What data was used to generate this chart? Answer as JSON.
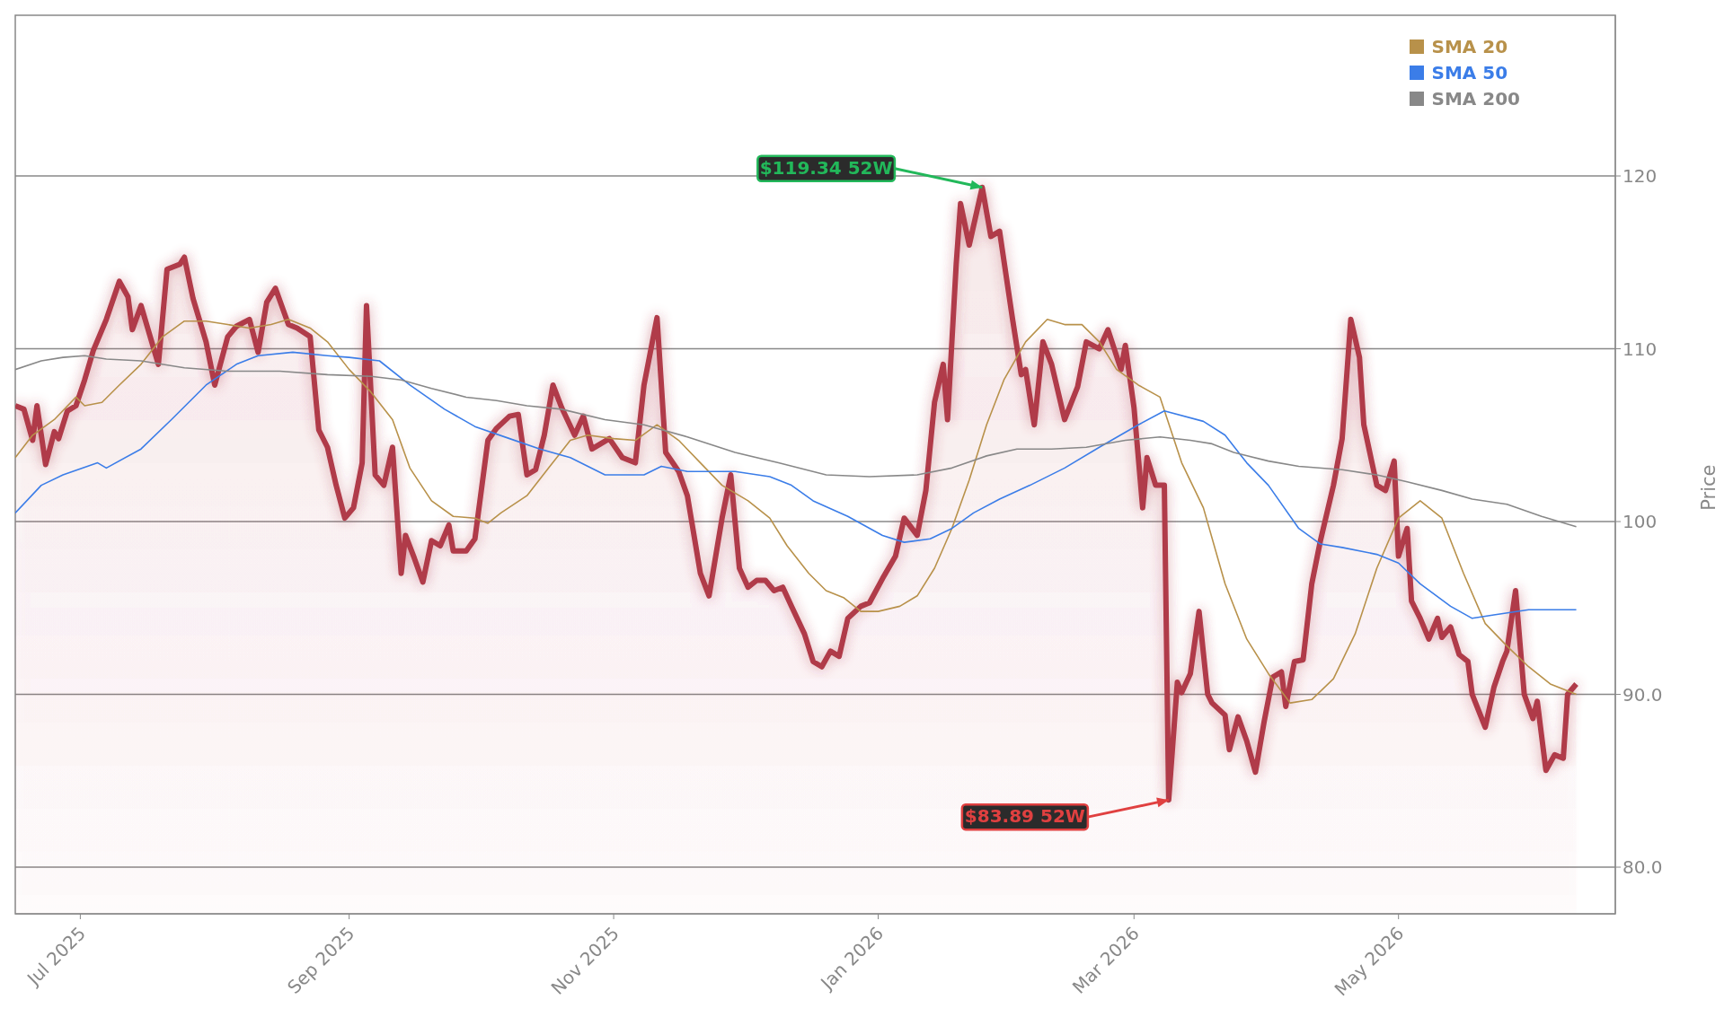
{
  "chart_data": {
    "type": "line",
    "ylabel": "Price",
    "grid": "y",
    "legend": "top right",
    "xlim": [
      "2025-06-16",
      "2026-06-20"
    ],
    "xticks": [
      {
        "value": "2025-07-01",
        "label": "Jul 2025"
      },
      {
        "value": "2025-09-01",
        "label": "Sep 2025"
      },
      {
        "value": "2025-11-01",
        "label": "Nov 2025"
      },
      {
        "value": "2026-01-01",
        "label": "Jan 2026"
      },
      {
        "value": "2026-03-01",
        "label": "Mar 2026"
      },
      {
        "value": "2026-05-01",
        "label": "May 2026"
      }
    ],
    "ylim": [
      77.3,
      129.3
    ],
    "yticks": [
      {
        "value": 80,
        "label": "80.0"
      },
      {
        "value": 90,
        "label": "90.0"
      },
      100,
      110,
      120
    ],
    "annotations": [
      {
        "text": "$119.34 52W",
        "x": "2026-01-25",
        "y": 119.34
      },
      {
        "text": "$83.89 52W",
        "x": "2026-03-09",
        "y": 83.89
      }
    ],
    "series": [
      {
        "type": "area",
        "color": "#b03a48",
        "x": [
          "2025-06-16",
          "2025-06-18",
          "2025-06-20",
          "2025-06-21",
          "2025-06-23",
          "2025-06-25",
          "2025-06-26",
          "2025-06-28",
          "2025-06-30",
          "2025-07-02",
          "2025-07-04",
          "2025-07-07",
          "2025-07-10",
          "2025-07-12",
          "2025-07-13",
          "2025-07-15",
          "2025-07-19",
          "2025-07-21",
          "2025-07-24",
          "2025-07-25",
          "2025-07-27",
          "2025-07-30",
          "2025-08-01",
          "2025-08-04",
          "2025-08-06",
          "2025-08-09",
          "2025-08-11",
          "2025-08-13",
          "2025-08-15",
          "2025-08-18",
          "2025-08-20",
          "2025-08-23",
          "2025-08-25",
          "2025-08-27",
          "2025-08-29",
          "2025-08-31",
          "2025-09-02",
          "2025-09-04",
          "2025-09-05",
          "2025-09-07",
          "2025-09-09",
          "2025-09-11",
          "2025-09-13",
          "2025-09-14",
          "2025-09-16",
          "2025-09-18",
          "2025-09-20",
          "2025-09-22",
          "2025-09-24",
          "2025-09-25",
          "2025-09-28",
          "2025-09-30",
          "2025-10-03",
          "2025-10-05",
          "2025-10-08",
          "2025-10-10",
          "2025-10-12",
          "2025-10-14",
          "2025-10-16",
          "2025-10-18",
          "2025-10-20",
          "2025-10-23",
          "2025-10-25",
          "2025-10-27",
          "2025-10-29",
          "2025-10-31",
          "2025-11-03",
          "2025-11-06",
          "2025-11-08",
          "2025-11-11",
          "2025-11-13",
          "2025-11-16",
          "2025-11-18",
          "2025-11-21",
          "2025-11-23",
          "2025-11-26",
          "2025-11-28",
          "2025-11-30",
          "2025-12-02",
          "2025-12-04",
          "2025-12-06",
          "2025-12-08",
          "2025-12-10",
          "2025-12-12",
          "2025-12-15",
          "2025-12-17",
          "2025-12-19",
          "2025-12-21",
          "2025-12-23",
          "2025-12-25",
          "2025-12-28",
          "2025-12-30",
          "2026-01-02",
          "2026-01-05",
          "2026-01-07",
          "2026-01-10",
          "2026-01-12",
          "2026-01-14",
          "2026-01-16",
          "2026-01-17",
          "2026-01-19",
          "2026-01-20",
          "2026-01-22",
          "2026-01-25",
          "2026-01-27",
          "2026-01-29",
          "2026-02-01",
          "2026-02-03",
          "2026-02-04",
          "2026-02-06",
          "2026-02-08",
          "2026-02-10",
          "2026-02-13",
          "2026-02-16",
          "2026-02-18",
          "2026-02-21",
          "2026-02-23",
          "2026-02-26",
          "2026-02-27",
          "2026-03-01",
          "2026-03-03",
          "2026-03-04",
          "2026-03-06",
          "2026-03-08",
          "2026-03-09",
          "2026-03-11",
          "2026-03-12",
          "2026-03-14",
          "2026-03-16",
          "2026-03-18",
          "2026-03-19",
          "2026-03-22",
          "2026-03-23",
          "2026-03-25",
          "2026-03-27",
          "2026-03-29",
          "2026-03-31",
          "2026-04-02",
          "2026-04-04",
          "2026-04-05",
          "2026-04-07",
          "2026-04-09",
          "2026-04-11",
          "2026-04-13",
          "2026-04-16",
          "2026-04-18",
          "2026-04-20",
          "2026-04-22",
          "2026-04-23",
          "2026-04-26",
          "2026-04-28",
          "2026-04-30",
          "2026-05-01",
          "2026-05-03",
          "2026-05-04",
          "2026-05-06",
          "2026-05-08",
          "2026-05-10",
          "2026-05-11",
          "2026-05-13",
          "2026-05-15",
          "2026-05-17",
          "2026-05-18",
          "2026-05-21",
          "2026-05-23",
          "2026-05-25",
          "2026-05-26",
          "2026-05-28",
          "2026-05-30",
          "2026-06-01",
          "2026-06-02",
          "2026-06-04",
          "2026-06-06",
          "2026-06-08",
          "2026-06-09",
          "2026-06-11"
        ],
        "values": [
          106.7,
          106.5,
          104.7,
          106.7,
          103.3,
          105.2,
          104.8,
          106.4,
          106.7,
          108.2,
          109.9,
          111.7,
          113.9,
          113.0,
          111.1,
          112.5,
          109.1,
          114.6,
          114.9,
          115.3,
          112.9,
          110.4,
          107.9,
          110.7,
          111.3,
          111.7,
          109.8,
          112.7,
          113.5,
          111.4,
          111.2,
          110.7,
          105.3,
          104.3,
          102.1,
          100.2,
          100.8,
          103.4,
          112.5,
          102.7,
          102.1,
          104.3,
          97.0,
          99.2,
          97.9,
          96.5,
          98.9,
          98.6,
          99.8,
          98.3,
          98.3,
          99.0,
          104.7,
          105.4,
          106.1,
          106.2,
          102.7,
          103.0,
          105.0,
          107.9,
          106.6,
          105.0,
          106.1,
          104.2,
          104.5,
          104.8,
          103.7,
          103.4,
          107.9,
          111.8,
          104.0,
          102.9,
          101.5,
          97.0,
          95.7,
          100.2,
          102.7,
          97.3,
          96.2,
          96.6,
          96.6,
          96.0,
          96.2,
          95.1,
          93.5,
          91.9,
          91.6,
          92.5,
          92.2,
          94.4,
          95.1,
          95.3,
          96.7,
          98.0,
          100.2,
          99.2,
          101.8,
          106.9,
          109.1,
          105.9,
          114.9,
          118.4,
          116.0,
          119.34,
          116.5,
          116.8,
          111.7,
          108.5,
          108.8,
          105.6,
          110.4,
          109.1,
          105.9,
          107.8,
          110.4,
          110.0,
          111.1,
          108.8,
          110.2,
          106.6,
          100.8,
          103.7,
          102.1,
          102.1,
          83.89,
          90.7,
          90.1,
          91.2,
          94.8,
          90.0,
          89.5,
          88.8,
          86.8,
          88.7,
          87.3,
          85.5,
          88.4,
          91.0,
          91.3,
          89.3,
          91.9,
          92.0,
          96.4,
          98.9,
          102.1,
          104.8,
          111.7,
          109.5,
          105.6,
          102.1,
          101.8,
          103.5,
          98.0,
          99.6,
          95.4,
          94.4,
          93.2,
          94.4,
          93.3,
          93.9,
          92.3,
          91.9,
          90.0,
          88.1,
          90.4,
          91.9,
          92.5,
          96.0,
          90.0,
          88.6,
          89.6,
          85.6,
          86.5,
          86.3,
          90.0,
          90.6
        ]
      },
      {
        "type": "line",
        "name": "SMA 20",
        "color": "#b8914a",
        "x": [
          "2025-06-16",
          "2025-06-20",
          "2025-06-25",
          "2025-06-30",
          "2025-07-02",
          "2025-07-06",
          "2025-07-10",
          "2025-07-15",
          "2025-07-20",
          "2025-07-25",
          "2025-07-30",
          "2025-08-04",
          "2025-08-09",
          "2025-08-14",
          "2025-08-18",
          "2025-08-23",
          "2025-08-27",
          "2025-09-01",
          "2025-09-06",
          "2025-09-11",
          "2025-09-15",
          "2025-09-20",
          "2025-09-25",
          "2025-09-30",
          "2025-10-03",
          "2025-10-06",
          "2025-10-12",
          "2025-10-17",
          "2025-10-22",
          "2025-10-26",
          "2025-11-01",
          "2025-11-06",
          "2025-11-11",
          "2025-11-16",
          "2025-11-21",
          "2025-11-26",
          "2025-12-02",
          "2025-12-07",
          "2025-12-11",
          "2025-12-16",
          "2025-12-20",
          "2025-12-24",
          "2025-12-28",
          "2026-01-01",
          "2026-01-06",
          "2026-01-10",
          "2026-01-14",
          "2026-01-18",
          "2026-01-22",
          "2026-01-26",
          "2026-01-30",
          "2026-02-04",
          "2026-02-09",
          "2026-02-13",
          "2026-02-17",
          "2026-02-21",
          "2026-02-25",
          "2026-03-02",
          "2026-03-07",
          "2026-03-12",
          "2026-03-17",
          "2026-03-22",
          "2026-03-27",
          "2026-04-01",
          "2026-04-06",
          "2026-04-11",
          "2026-04-16",
          "2026-04-21",
          "2026-04-26",
          "2026-05-01",
          "2026-05-06",
          "2026-05-11",
          "2026-05-16",
          "2026-05-21",
          "2026-05-26",
          "2026-05-31",
          "2026-06-05",
          "2026-06-11"
        ],
        "values": [
          103.7,
          105.0,
          105.9,
          107.2,
          106.7,
          106.9,
          107.9,
          109.1,
          110.7,
          111.6,
          111.6,
          111.4,
          111.2,
          111.4,
          111.7,
          111.2,
          110.4,
          108.8,
          107.5,
          105.9,
          103.1,
          101.2,
          100.3,
          100.2,
          99.9,
          100.5,
          101.5,
          103.1,
          104.7,
          105.0,
          104.8,
          104.7,
          105.6,
          104.7,
          103.4,
          102.1,
          101.2,
          100.2,
          98.6,
          97.0,
          96.0,
          95.6,
          94.8,
          94.8,
          95.1,
          95.7,
          97.3,
          99.6,
          102.4,
          105.6,
          108.2,
          110.4,
          111.7,
          111.4,
          111.4,
          110.4,
          108.8,
          107.9,
          107.2,
          103.4,
          100.8,
          96.4,
          93.2,
          91.2,
          89.5,
          89.7,
          90.9,
          93.5,
          97.3,
          100.2,
          101.2,
          100.2,
          97.0,
          94.1,
          92.8,
          91.6,
          90.6,
          90.0
        ]
      },
      {
        "type": "line",
        "name": "SMA 50",
        "color": "#3b7de8",
        "x": [
          "2025-06-16",
          "2025-06-22",
          "2025-06-27",
          "2025-07-05",
          "2025-07-07",
          "2025-07-15",
          "2025-07-22",
          "2025-07-30",
          "2025-08-06",
          "2025-08-11",
          "2025-08-19",
          "2025-08-27",
          "2025-09-01",
          "2025-09-08",
          "2025-09-15",
          "2025-09-23",
          "2025-09-30",
          "2025-10-08",
          "2025-10-15",
          "2025-10-22",
          "2025-10-30",
          "2025-11-08",
          "2025-11-12",
          "2025-11-18",
          "2025-11-29",
          "2025-12-07",
          "2025-12-12",
          "2025-12-17",
          "2025-12-25",
          "2026-01-02",
          "2026-01-07",
          "2026-01-13",
          "2026-01-18",
          "2026-01-23",
          "2026-01-29",
          "2026-02-05",
          "2026-02-13",
          "2026-02-21",
          "2026-03-02",
          "2026-03-08",
          "2026-03-17",
          "2026-03-22",
          "2026-03-27",
          "2026-04-01",
          "2026-04-08",
          "2026-04-13",
          "2026-04-18",
          "2026-04-26",
          "2026-05-01",
          "2026-05-06",
          "2026-05-13",
          "2026-05-18",
          "2026-05-23",
          "2026-05-31",
          "2026-06-11"
        ],
        "values": [
          100.5,
          102.1,
          102.7,
          103.4,
          103.1,
          104.2,
          105.9,
          107.9,
          109.1,
          109.6,
          109.8,
          109.6,
          109.5,
          109.3,
          107.9,
          106.5,
          105.5,
          104.8,
          104.2,
          103.7,
          102.7,
          102.7,
          103.2,
          102.9,
          102.9,
          102.6,
          102.1,
          101.2,
          100.3,
          99.2,
          98.8,
          99.0,
          99.6,
          100.5,
          101.3,
          102.1,
          103.1,
          104.3,
          105.6,
          106.4,
          105.8,
          105.0,
          103.4,
          102.1,
          99.6,
          98.7,
          98.5,
          98.1,
          97.6,
          96.4,
          95.1,
          94.4,
          94.6,
          94.9,
          94.9
        ]
      },
      {
        "type": "line",
        "name": "SMA 200",
        "color": "#888888",
        "x": [
          "2025-06-16",
          "2025-06-22",
          "2025-06-27",
          "2025-07-02",
          "2025-07-07",
          "2025-07-15",
          "2025-07-25",
          "2025-08-04",
          "2025-08-16",
          "2025-08-27",
          "2025-09-06",
          "2025-09-13",
          "2025-09-20",
          "2025-09-28",
          "2025-10-05",
          "2025-10-12",
          "2025-10-20",
          "2025-10-30",
          "2025-11-08",
          "2025-11-18",
          "2025-11-29",
          "2025-12-09",
          "2025-12-20",
          "2025-12-30",
          "2026-01-10",
          "2026-01-18",
          "2026-01-26",
          "2026-02-02",
          "2026-02-10",
          "2026-02-18",
          "2026-02-27",
          "2026-03-07",
          "2026-03-14",
          "2026-03-19",
          "2026-03-24",
          "2026-04-01",
          "2026-04-08",
          "2026-04-18",
          "2026-04-26",
          "2026-05-03",
          "2026-05-11",
          "2026-05-18",
          "2026-05-26",
          "2026-06-03",
          "2026-06-11"
        ],
        "values": [
          108.8,
          109.3,
          109.5,
          109.6,
          109.4,
          109.3,
          108.9,
          108.7,
          108.7,
          108.5,
          108.4,
          108.2,
          107.7,
          107.2,
          107.0,
          106.7,
          106.5,
          105.9,
          105.6,
          104.9,
          104.0,
          103.4,
          102.7,
          102.6,
          102.7,
          103.1,
          103.8,
          104.2,
          104.2,
          104.3,
          104.7,
          104.9,
          104.7,
          104.5,
          104.0,
          103.5,
          103.2,
          103.0,
          102.7,
          102.3,
          101.8,
          101.3,
          101.0,
          100.3,
          99.7
        ]
      }
    ]
  }
}
